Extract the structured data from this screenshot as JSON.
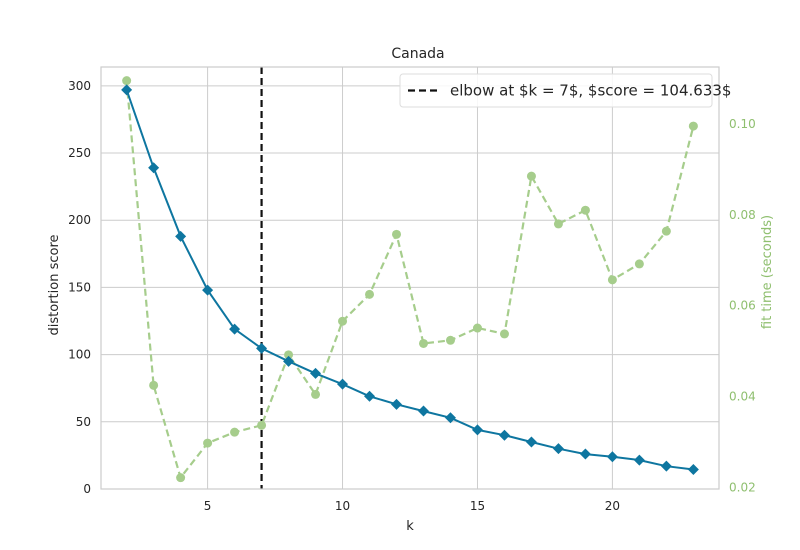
{
  "chart_data": {
    "type": "line",
    "title": "Canada",
    "xlabel": "k",
    "ylabel": "distortion score",
    "y2label": "fit time (seconds)",
    "xlim": [
      1.05,
      23.95
    ],
    "ylim": [
      0,
      314
    ],
    "y2lim": [
      0.0197,
      0.1125
    ],
    "xticks": [
      5,
      10,
      15,
      20
    ],
    "yticks": [
      0,
      50,
      100,
      150,
      200,
      250,
      300
    ],
    "y2ticks": [
      0.02,
      0.04,
      0.06,
      0.08,
      0.1
    ],
    "y2tick_labels": [
      "0.02",
      "0.04",
      "0.06",
      "0.08",
      "0.10"
    ],
    "grid": true,
    "legend_position": "top-right",
    "legend_label": "elbow at $k = 7$, $score = 104.633$",
    "elbow": {
      "k": 7,
      "score": 104.633
    },
    "colors": {
      "distortion": "#0e76a0",
      "fit_time": "#a6cd8c",
      "elbow": "#111111",
      "grid": "#cccccc"
    },
    "series": [
      {
        "axis": "left",
        "x": [
          2,
          3,
          4,
          5,
          6,
          7,
          8,
          9,
          10,
          11,
          12,
          13,
          14,
          15,
          16,
          17,
          18,
          19,
          20,
          21,
          22,
          23
        ],
        "values": [
          297,
          239,
          188,
          148,
          119,
          104.633,
          95,
          86,
          78,
          69,
          63,
          58,
          53,
          44,
          40,
          35,
          30,
          26,
          24,
          21.5,
          17,
          14.5
        ]
      },
      {
        "axis": "right",
        "x": [
          2,
          3,
          4,
          5,
          6,
          7,
          8,
          9,
          10,
          11,
          12,
          13,
          14,
          15,
          16,
          17,
          18,
          19,
          20,
          21,
          22,
          23
        ],
        "values": [
          0.1095,
          0.0425,
          0.0222,
          0.0298,
          0.0322,
          0.0337,
          0.0492,
          0.0405,
          0.0566,
          0.0625,
          0.0757,
          0.0517,
          0.0524,
          0.0551,
          0.0538,
          0.0885,
          0.078,
          0.081,
          0.0657,
          0.0692,
          0.0764,
          0.0995
        ]
      }
    ]
  }
}
